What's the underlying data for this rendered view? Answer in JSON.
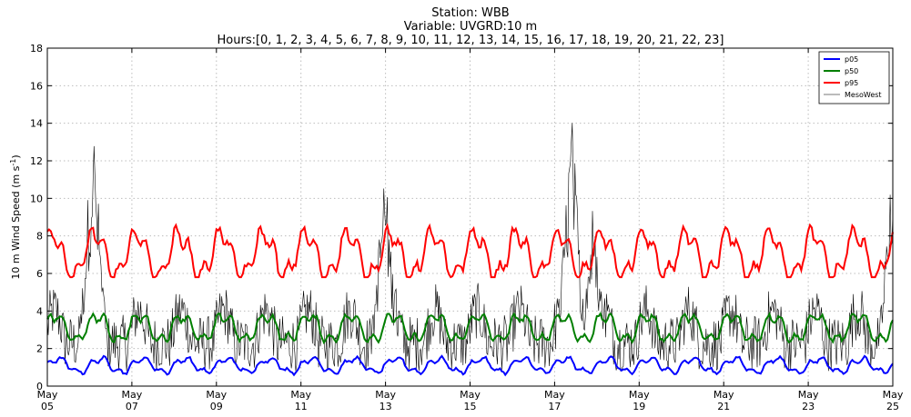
{
  "chart_data": {
    "type": "line",
    "title_lines": [
      "Station: WBB",
      "Variable: UVGRD:10 m",
      "Hours:[0, 1, 2, 3, 4, 5, 6, 7, 8, 9, 10, 11, 12, 13, 14, 15, 16, 17, 18, 19, 20, 21, 22, 23]"
    ],
    "ylabel": "10 m Wind Speed (m s",
    "ylabel_sup": "-1",
    "ylabel_end": ")",
    "ylim": [
      0,
      18
    ],
    "xlim": [
      5,
      25
    ],
    "yticks": [
      0,
      2,
      4,
      6,
      8,
      10,
      12,
      14,
      16,
      18
    ],
    "xticks": [
      {
        "day": 5,
        "month": "May",
        "label": "05"
      },
      {
        "day": 7,
        "month": "May",
        "label": "07"
      },
      {
        "day": 9,
        "month": "May",
        "label": "09"
      },
      {
        "day": 11,
        "month": "May",
        "label": "11"
      },
      {
        "day": 13,
        "month": "May",
        "label": "13"
      },
      {
        "day": 15,
        "month": "May",
        "label": "15"
      },
      {
        "day": 17,
        "month": "May",
        "label": "17"
      },
      {
        "day": 19,
        "month": "May",
        "label": "19"
      },
      {
        "day": 21,
        "month": "May",
        "label": "21"
      },
      {
        "day": 23,
        "month": "May",
        "label": "23"
      },
      {
        "day": 25,
        "month": "May",
        "label": "25"
      }
    ],
    "grid": true,
    "legend_position": "top-right",
    "series": [
      {
        "name": "p05",
        "color": "#0000ff",
        "base": 1.1,
        "amp": 0.35,
        "min": 0.55,
        "max": 1.85
      },
      {
        "name": "p50",
        "color": "#007f00",
        "base": 3.1,
        "amp": 0.65,
        "min": 2.2,
        "max": 4.3
      },
      {
        "name": "p95",
        "color": "#ff0000",
        "base": 7.0,
        "amp": 1.1,
        "min": 5.8,
        "max": 9.0
      },
      {
        "name": "MesoWest",
        "color": "#000000",
        "legend_color": "#bbbbbb",
        "min": 0,
        "max": 15.0,
        "peaks": [
          {
            "day": 6.08,
            "value": 14.6
          },
          {
            "day": 12.98,
            "value": 12.1
          },
          {
            "day": 17.4,
            "value": 15.0
          },
          {
            "day": 17.9,
            "value": 9.7
          },
          {
            "day": 24.95,
            "value": 10.7
          }
        ]
      }
    ]
  }
}
